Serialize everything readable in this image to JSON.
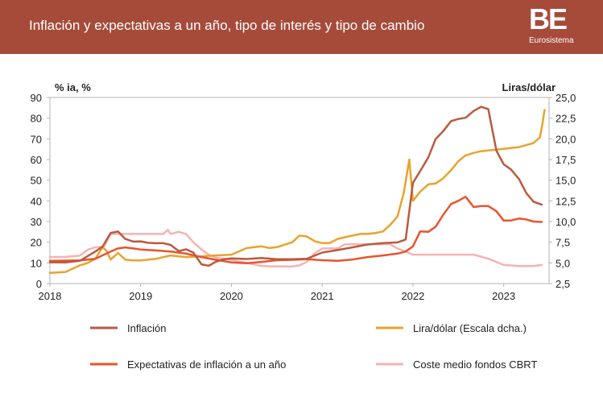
{
  "header": {
    "title": "Inflación y expectativas a un año, tipo de interés y tipo de cambio",
    "logo_mark": "BE",
    "logo_sub": "Eurosistema",
    "background_color": "#a64b3a"
  },
  "chart_data": {
    "type": "line",
    "title": "Inflación y expectativas a un año, tipo de interés y tipo de cambio",
    "xlabel": "",
    "ylabel_left": "% ia, %",
    "ylabel_right": "Liras/dólar",
    "xlim": [
      2018.0,
      2023.5
    ],
    "ylim_left": [
      0,
      90
    ],
    "ylim_right": [
      2.5,
      25.0
    ],
    "x_ticks": [
      2018,
      2019,
      2020,
      2021,
      2022,
      2023
    ],
    "y_ticks_left": [
      "0",
      "10",
      "20",
      "30",
      "40",
      "50",
      "60",
      "70",
      "80",
      "90"
    ],
    "y_ticks_right": [
      "2,5",
      "5,0",
      "7,5",
      "10,0",
      "12,5",
      "15,0",
      "17,5",
      "20,0",
      "22,5",
      "25,0"
    ],
    "grid": false,
    "legend_position": "bottom",
    "series": [
      {
        "name": "Inflación",
        "axis": "left",
        "color": "#b85b3f",
        "x": [
          2018.0,
          2018.17,
          2018.33,
          2018.5,
          2018.58,
          2018.67,
          2018.75,
          2018.83,
          2018.92,
          2019.0,
          2019.08,
          2019.17,
          2019.25,
          2019.33,
          2019.42,
          2019.5,
          2019.58,
          2019.67,
          2019.75,
          2019.83,
          2019.92,
          2020.0,
          2020.17,
          2020.33,
          2020.5,
          2020.67,
          2020.83,
          2021.0,
          2021.17,
          2021.33,
          2021.5,
          2021.67,
          2021.83,
          2021.92,
          2022.0,
          2022.08,
          2022.17,
          2022.25,
          2022.33,
          2022.42,
          2022.5,
          2022.58,
          2022.67,
          2022.75,
          2022.83,
          2022.92,
          2023.0,
          2023.08,
          2023.17,
          2023.25,
          2023.33,
          2023.42
        ],
        "y": [
          10.3,
          10.2,
          11.0,
          15.5,
          17.9,
          24.5,
          25.2,
          21.6,
          20.3,
          20.4,
          19.7,
          19.5,
          19.5,
          18.7,
          15.7,
          16.6,
          15.0,
          9.3,
          8.6,
          10.6,
          11.8,
          12.2,
          11.9,
          12.4,
          11.8,
          11.8,
          12.0,
          15.0,
          16.2,
          17.5,
          18.9,
          19.6,
          19.9,
          21.3,
          48.7,
          54.4,
          61.1,
          69.9,
          73.5,
          78.6,
          79.6,
          80.2,
          83.5,
          85.5,
          84.4,
          64.3,
          57.7,
          55.2,
          50.5,
          43.7,
          39.6,
          38.2
        ]
      },
      {
        "name": "Lira/dólar (Escala dcha.)",
        "axis": "right",
        "color": "#e8a32e",
        "x": [
          2018.0,
          2018.17,
          2018.33,
          2018.42,
          2018.5,
          2018.58,
          2018.62,
          2018.67,
          2018.75,
          2018.83,
          2018.92,
          2019.0,
          2019.17,
          2019.33,
          2019.5,
          2019.67,
          2019.83,
          2020.0,
          2020.17,
          2020.33,
          2020.42,
          2020.5,
          2020.67,
          2020.75,
          2020.83,
          2020.92,
          2021.0,
          2021.08,
          2021.17,
          2021.25,
          2021.33,
          2021.42,
          2021.5,
          2021.58,
          2021.67,
          2021.75,
          2021.83,
          2021.9,
          2021.96,
          2022.0,
          2022.08,
          2022.17,
          2022.25,
          2022.33,
          2022.42,
          2022.5,
          2022.58,
          2022.67,
          2022.75,
          2022.83,
          2022.92,
          2023.0,
          2023.17,
          2023.33,
          2023.4,
          2023.43,
          2023.45
        ],
        "y": [
          3.8,
          3.9,
          4.7,
          5.0,
          5.5,
          6.9,
          6.5,
          5.4,
          6.2,
          5.4,
          5.3,
          5.3,
          5.5,
          5.9,
          5.7,
          5.8,
          5.9,
          6.0,
          6.8,
          7.0,
          6.8,
          6.9,
          7.5,
          8.3,
          8.2,
          7.6,
          7.4,
          7.4,
          7.9,
          8.1,
          8.3,
          8.5,
          8.5,
          8.6,
          8.8,
          9.6,
          10.6,
          13.5,
          17.5,
          12.5,
          13.6,
          14.5,
          14.6,
          15.2,
          16.2,
          17.3,
          18.0,
          18.3,
          18.5,
          18.6,
          18.7,
          18.8,
          19.0,
          19.5,
          20.2,
          22.0,
          23.5
        ]
      },
      {
        "name": "Expectativas de inflación a un año",
        "axis": "left",
        "color": "#e8542e",
        "x": [
          2018.0,
          2018.33,
          2018.5,
          2018.67,
          2018.75,
          2018.83,
          2018.92,
          2019.0,
          2019.17,
          2019.33,
          2019.5,
          2019.67,
          2019.83,
          2020.0,
          2020.17,
          2020.33,
          2020.5,
          2020.67,
          2020.83,
          2021.0,
          2021.17,
          2021.33,
          2021.5,
          2021.67,
          2021.83,
          2021.92,
          2022.0,
          2022.08,
          2022.17,
          2022.25,
          2022.33,
          2022.42,
          2022.5,
          2022.58,
          2022.67,
          2022.75,
          2022.83,
          2022.92,
          2023.0,
          2023.08,
          2023.17,
          2023.25,
          2023.33,
          2023.42
        ],
        "y": [
          11.0,
          11.2,
          12.0,
          15.5,
          17.0,
          17.5,
          17.0,
          16.5,
          16.0,
          15.5,
          14.5,
          12.8,
          11.5,
          10.2,
          9.8,
          10.5,
          11.3,
          11.5,
          11.8,
          11.3,
          11.0,
          11.6,
          12.8,
          13.6,
          14.5,
          15.5,
          18.0,
          25.2,
          25.0,
          27.5,
          33.0,
          38.5,
          40.0,
          42.0,
          37.0,
          37.5,
          37.5,
          35.0,
          30.5,
          30.5,
          31.5,
          31.0,
          30.0,
          29.8
        ]
      },
      {
        "name": "Coste medio fondos CBRT",
        "axis": "left",
        "color": "#f4b3b3",
        "x": [
          2018.0,
          2018.17,
          2018.33,
          2018.42,
          2018.5,
          2018.6,
          2018.67,
          2018.75,
          2018.83,
          2019.0,
          2019.17,
          2019.25,
          2019.3,
          2019.33,
          2019.42,
          2019.5,
          2019.58,
          2019.67,
          2019.75,
          2019.83,
          2019.92,
          2020.0,
          2020.17,
          2020.33,
          2020.5,
          2020.67,
          2020.75,
          2020.83,
          2020.92,
          2021.0,
          2021.17,
          2021.25,
          2021.33,
          2021.5,
          2021.67,
          2021.75,
          2021.83,
          2021.92,
          2022.0,
          2022.17,
          2022.33,
          2022.5,
          2022.67,
          2022.75,
          2022.83,
          2022.92,
          2023.0,
          2023.17,
          2023.33,
          2023.42
        ],
        "y": [
          12.8,
          12.9,
          13.5,
          16.5,
          17.5,
          18.0,
          24.0,
          24.0,
          24.0,
          24.0,
          24.0,
          24.0,
          26.0,
          24.0,
          25.0,
          24.0,
          20.0,
          16.5,
          14.0,
          12.5,
          12.0,
          11.4,
          10.0,
          8.5,
          8.3,
          8.3,
          8.8,
          10.5,
          14.8,
          17.0,
          17.0,
          19.0,
          19.0,
          19.0,
          19.0,
          19.0,
          17.0,
          15.5,
          14.0,
          14.0,
          14.0,
          14.0,
          14.0,
          13.0,
          12.0,
          10.5,
          9.0,
          8.5,
          8.5,
          9.0
        ]
      }
    ]
  }
}
